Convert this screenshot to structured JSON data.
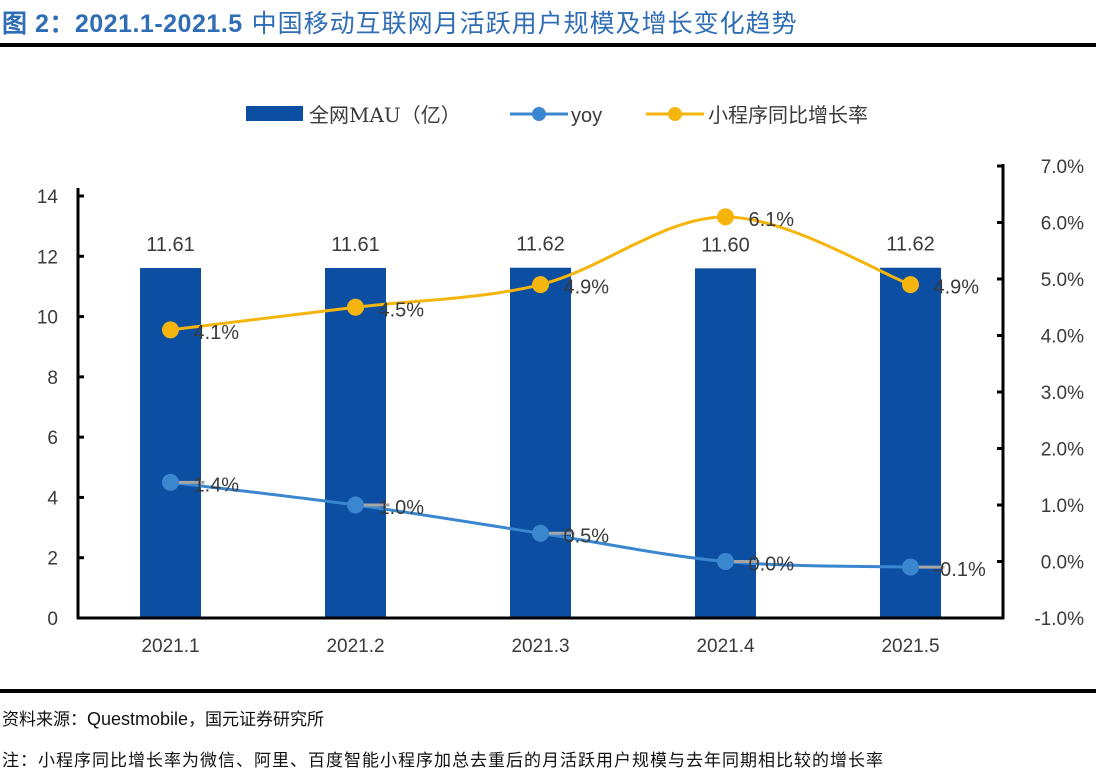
{
  "header": {
    "prefix": "图 2：",
    "range": "2021.1-2021.5",
    "subject": " 中国移动互联网月活跃用户规模及增长变化趋势"
  },
  "footer": {
    "source_prefix": "资料来源：",
    "source_latin": "Questmobile",
    "source_suffix": "，国元证券研究所",
    "note": "注：小程序同比增长率为微信、阿里、百度智能小程序加总去重后的月活跃用户规模与去年同期相比较的增长率"
  },
  "chart_data": {
    "type": "bar",
    "title": "2021.1-2021.5 中国移动互联网月活跃用户规模及增长变化趋势",
    "categories": [
      "2021.1",
      "2021.2",
      "2021.3",
      "2021.4",
      "2021.5"
    ],
    "series": [
      {
        "name": "全网MAU（亿）",
        "kind": "bar",
        "axis": "left",
        "color": "#0b4ea2",
        "values": [
          11.61,
          11.61,
          11.62,
          11.6,
          11.62
        ],
        "labels": [
          "11.61",
          "11.61",
          "11.62",
          "11.60",
          "11.62"
        ]
      },
      {
        "name": "yoy",
        "kind": "line",
        "axis": "right",
        "color": "#3a87d0",
        "smooth": true,
        "values": [
          1.4,
          1.0,
          0.5,
          0.0,
          -0.1
        ],
        "labels": [
          "1.4%",
          "1.0%",
          "0.5%",
          "0.0%",
          "-0.1%"
        ]
      },
      {
        "name": "小程序同比增长率",
        "kind": "line",
        "axis": "right",
        "color": "#f5b50c",
        "smooth": true,
        "values": [
          4.1,
          4.5,
          4.9,
          6.1,
          4.9
        ],
        "labels": [
          "4.1%",
          "4.5%",
          "4.9%",
          "6.1%",
          "4.9%"
        ]
      }
    ],
    "left_axis": {
      "ylim": [
        0,
        14
      ],
      "ticks": [
        "0",
        "2",
        "4",
        "6",
        "8",
        "10",
        "12",
        "14"
      ],
      "tick_values": [
        0,
        2,
        4,
        6,
        8,
        10,
        12,
        14
      ]
    },
    "right_axis": {
      "ylim": [
        -1.0,
        7.0
      ],
      "ticks": [
        "-1.0%",
        "0.0%",
        "1.0%",
        "2.0%",
        "3.0%",
        "4.0%",
        "5.0%",
        "6.0%",
        "7.0%"
      ],
      "tick_values": [
        -1,
        0,
        1,
        2,
        3,
        4,
        5,
        6,
        7
      ]
    },
    "xlabel": "",
    "ylabel": "",
    "grid": false,
    "legend_position": "top-center"
  }
}
